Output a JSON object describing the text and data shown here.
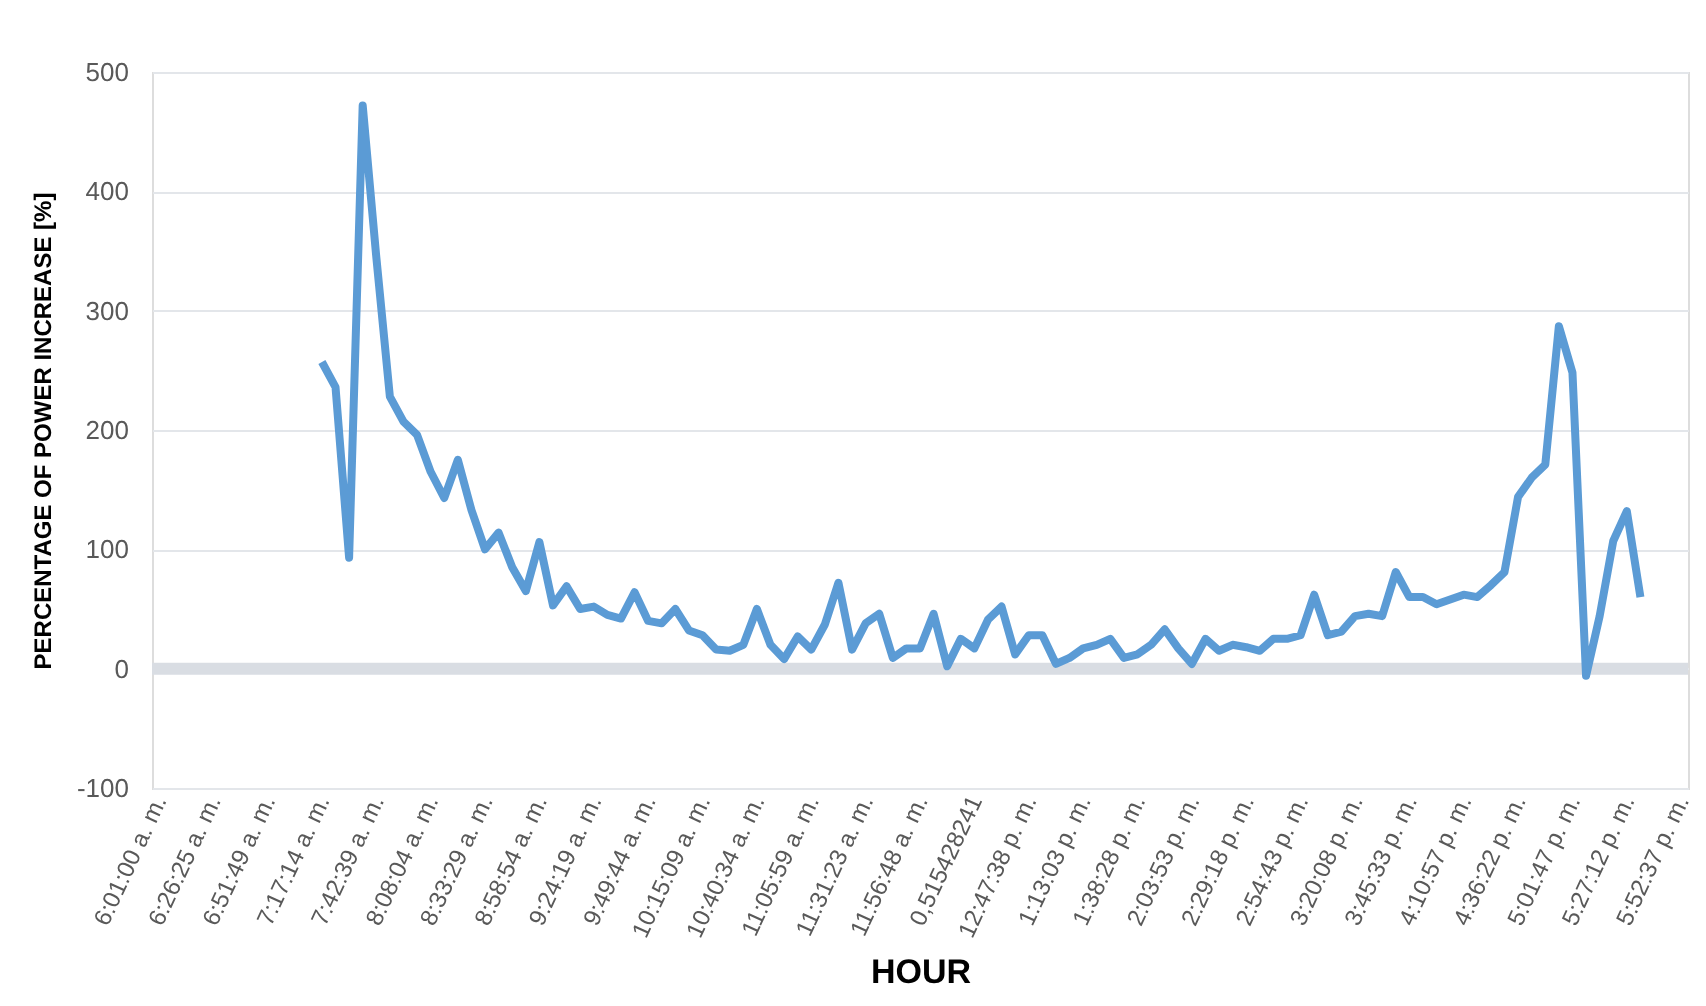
{
  "chart_data": {
    "type": "line",
    "xlabel": "HOUR",
    "ylabel": "PERCENTAGE OF POWER INCREASE  [%]",
    "categories": [
      "6:01:00 a. m.",
      null,
      null,
      null,
      "6:26:25 a. m.",
      null,
      null,
      null,
      "6:51:49 a. m.",
      null,
      null,
      null,
      "7:17:14 a. m.",
      null,
      null,
      null,
      "7:42:39 a. m.",
      null,
      null,
      null,
      "8:08:04 a. m.",
      null,
      null,
      null,
      "8:33:29 a. m.",
      null,
      null,
      null,
      "8:58:54 a. m.",
      null,
      null,
      null,
      "9:24:19 a. m.",
      null,
      null,
      null,
      "9:49:44 a. m.",
      null,
      null,
      null,
      "10:15:09 a. m.",
      null,
      null,
      null,
      "10:40:34 a. m.",
      null,
      null,
      null,
      "11:05:59 a. m.",
      null,
      null,
      null,
      "11:31:23 a. m.",
      null,
      null,
      null,
      "11:56:48 a. m.",
      null,
      null,
      null,
      "0,515428241",
      null,
      null,
      null,
      "12:47:38 p. m.",
      null,
      null,
      null,
      "1:13:03 p. m.",
      null,
      null,
      null,
      "1:38:28 p. m.",
      null,
      null,
      null,
      "2:03:53 p. m.",
      null,
      null,
      null,
      "2:29:18 p. m.",
      null,
      null,
      null,
      "2:54:43 p. m.",
      null,
      null,
      null,
      "3:20:08 p. m.",
      null,
      null,
      null,
      "3:45:33 p. m.",
      null,
      null,
      null,
      "4:10:57 p. m.",
      null,
      null,
      null,
      "4:36:22 p. m.",
      null,
      null,
      null,
      "5:01:47 p. m.",
      null,
      null,
      null,
      "5:27:12 p. m.",
      null,
      null,
      null,
      "5:52:37 p. m."
    ],
    "series": [
      {
        "color": "#5b9bd5",
        "values": [
          null,
          null,
          null,
          null,
          null,
          null,
          null,
          null,
          null,
          null,
          null,
          null,
          257,
          236,
          93,
          472,
          345,
          228,
          207,
          196,
          165,
          143,
          175,
          133,
          100,
          114,
          85,
          65,
          106,
          53,
          69,
          50,
          52,
          45,
          42,
          64,
          40,
          38,
          50,
          32,
          28,
          16,
          15,
          20,
          50,
          20,
          8,
          27,
          16,
          37,
          72,
          16,
          38,
          46,
          9,
          17,
          17,
          46,
          2,
          25,
          17,
          41,
          52,
          12,
          28,
          28,
          4,
          9,
          17,
          20,
          25,
          9,
          12,
          20,
          33,
          17,
          4,
          25,
          15,
          20,
          18,
          15,
          25,
          25,
          28,
          62,
          28,
          31,
          44,
          46,
          44,
          81,
          60,
          60,
          54,
          58,
          62,
          60,
          70,
          81,
          144,
          160,
          171,
          287,
          248,
          -6,
          44,
          107,
          132,
          60,
          null,
          null,
          null
        ]
      }
    ],
    "ylim": [
      -100,
      500
    ],
    "yticks": [
      -100,
      0,
      100,
      200,
      300,
      400,
      500
    ],
    "ref_lines": [
      {
        "axis": "y",
        "value": 0,
        "color": "#d9dde3"
      }
    ],
    "grid": "y",
    "marker": "none",
    "line_style": "solid"
  }
}
